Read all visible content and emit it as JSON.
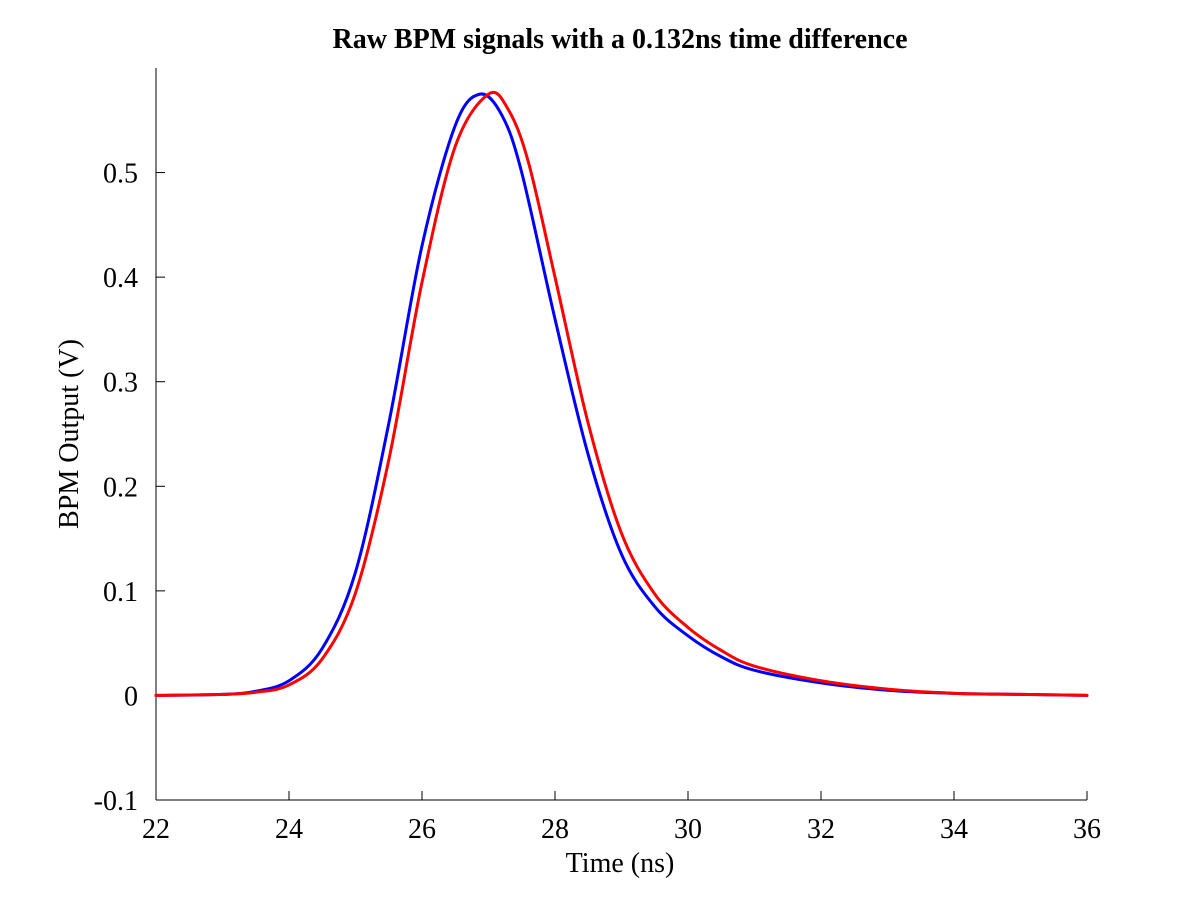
{
  "chart_data": {
    "type": "line",
    "title": "Raw BPM signals with a 0.132ns time difference",
    "xlabel": "Time (ns)",
    "ylabel": "BPM Output (V)",
    "xlim": [
      22,
      36
    ],
    "ylim": [
      -0.1,
      0.6
    ],
    "xticks": [
      22,
      24,
      26,
      28,
      30,
      32,
      34,
      36
    ],
    "xtick_labels": [
      "22",
      "24",
      "26",
      "28",
      "30",
      "32",
      "34",
      "36"
    ],
    "yticks": [
      -0.1,
      0,
      0.1,
      0.2,
      0.3,
      0.4,
      0.5
    ],
    "ytick_labels": [
      "-0.1",
      "0",
      "0.1",
      "0.2",
      "0.3",
      "0.4",
      "0.5"
    ],
    "grid": false,
    "series": [
      {
        "color": "#0000ff",
        "x": [
          22,
          23,
          23.5,
          24,
          24.5,
          25,
          25.5,
          26,
          26.5,
          26.87,
          27.2,
          27.5,
          28,
          28.5,
          29,
          29.5,
          30,
          30.5,
          31,
          32,
          33,
          34,
          35,
          36
        ],
        "y": [
          0,
          0.001,
          0.004,
          0.014,
          0.045,
          0.118,
          0.26,
          0.43,
          0.545,
          0.575,
          0.555,
          0.5,
          0.36,
          0.23,
          0.135,
          0.085,
          0.057,
          0.037,
          0.024,
          0.012,
          0.005,
          0.002,
          0.001,
          0
        ]
      },
      {
        "color": "#ff0000",
        "x": [
          22,
          23,
          23.5,
          24,
          24.5,
          25,
          25.5,
          26,
          26.5,
          27,
          27.3,
          27.6,
          28,
          28.5,
          29,
          29.5,
          30,
          30.5,
          31,
          32,
          33,
          34,
          35,
          36
        ],
        "y": [
          0,
          0.001,
          0.003,
          0.01,
          0.035,
          0.098,
          0.225,
          0.395,
          0.525,
          0.575,
          0.56,
          0.51,
          0.4,
          0.26,
          0.155,
          0.097,
          0.065,
          0.043,
          0.028,
          0.014,
          0.006,
          0.002,
          0.001,
          0
        ]
      }
    ]
  }
}
